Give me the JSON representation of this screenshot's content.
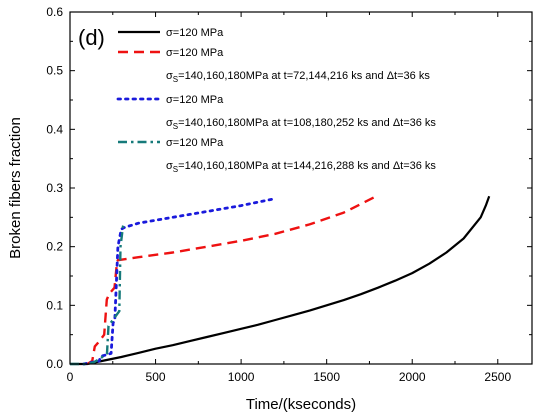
{
  "chart_data": {
    "type": "line",
    "panel_label": "(d)",
    "xlabel": "Time/(kseconds)",
    "ylabel": "Broken fibers fraction",
    "xlim": [
      0,
      2700
    ],
    "ylim": [
      0,
      0.6
    ],
    "xticks": [
      "0",
      "500",
      "1000",
      "1500",
      "2000",
      "2500"
    ],
    "yticks": [
      "0.0",
      "0.1",
      "0.2",
      "0.3",
      "0.4",
      "0.5",
      "0.6"
    ],
    "grid": false,
    "legend_position": "top-left",
    "series": [
      {
        "legend_line1": "σ=120 MPa",
        "legend_line2": "",
        "color": "#000000",
        "style": "solid",
        "x": [
          0,
          100,
          200,
          300,
          400,
          500,
          600,
          700,
          800,
          900,
          1000,
          1100,
          1200,
          1300,
          1400,
          1500,
          1600,
          1700,
          1800,
          1900,
          2000,
          2100,
          2200,
          2300,
          2400,
          2430,
          2450
        ],
        "y": [
          0.0,
          0.0,
          0.006,
          0.012,
          0.019,
          0.026,
          0.032,
          0.039,
          0.046,
          0.053,
          0.06,
          0.067,
          0.075,
          0.083,
          0.091,
          0.1,
          0.109,
          0.119,
          0.13,
          0.142,
          0.155,
          0.171,
          0.19,
          0.214,
          0.25,
          0.27,
          0.286
        ]
      },
      {
        "legend_line1": "σ=120 MPa",
        "legend_line2": "σS=140,160,180MPa at t=72,144,216 ks and Δt=36 ks",
        "color": "#ee1111",
        "style": "dash",
        "x": [
          100,
          130,
          145,
          160,
          200,
          215,
          230,
          260,
          275,
          280,
          400,
          600,
          800,
          1000,
          1200,
          1400,
          1600,
          1790
        ],
        "y": [
          0.0,
          0.005,
          0.03,
          0.035,
          0.05,
          0.11,
          0.12,
          0.13,
          0.175,
          0.177,
          0.182,
          0.19,
          0.2,
          0.21,
          0.222,
          0.238,
          0.258,
          0.286
        ]
      },
      {
        "legend_line1": "σ=120 MPa",
        "legend_line2": "σS=140,160,180MPa at t=108,180,252 ks and Δt=36 ks",
        "color": "#1a1adc",
        "style": "dot",
        "x": [
          80,
          130,
          170,
          180,
          240,
          252,
          262,
          280,
          300,
          320,
          400,
          600,
          800,
          1000,
          1200
        ],
        "y": [
          0.0,
          0.003,
          0.005,
          0.013,
          0.018,
          0.07,
          0.075,
          0.2,
          0.23,
          0.233,
          0.24,
          0.25,
          0.26,
          0.27,
          0.282
        ]
      },
      {
        "legend_line1": "σ=120 MPa",
        "legend_line2": "σS=140,160,180MPa at t=144,216,288 ks and Δt=36 ks",
        "color": "#167a7a",
        "style": "dashdot",
        "x": [
          0,
          100,
          140,
          180,
          216,
          225,
          250,
          288,
          295,
          310,
          315
        ],
        "y": [
          0.0,
          0.0,
          0.003,
          0.01,
          0.018,
          0.065,
          0.075,
          0.09,
          0.2,
          0.235,
          0.24
        ]
      }
    ]
  }
}
